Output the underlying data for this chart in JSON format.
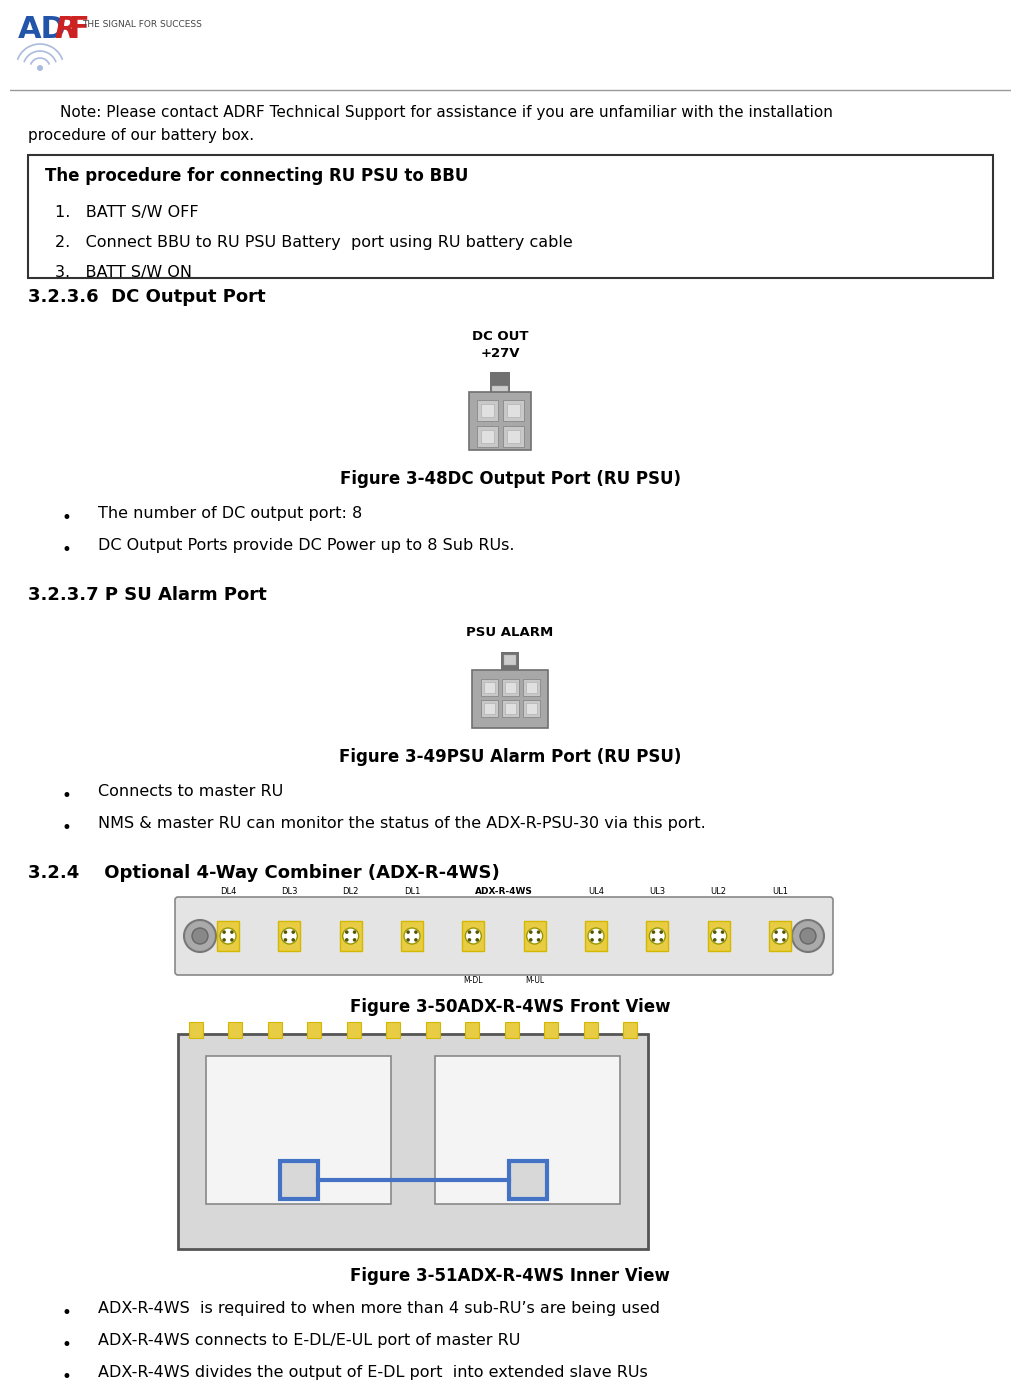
{
  "bg_color": "#ffffff",
  "logo_adrf_blue": "#2255aa",
  "logo_adrf_red": "#cc2222",
  "logo_subtitle": "THE SIGNAL FOR SUCCESS",
  "note_text_line1": "Note: Please contact ADRF Technical Support for assistance if you are unfamiliar with the installation",
  "note_text_line2": "procedure of our battery box.",
  "box_title": "The procedure for connecting RU PSU to BBU",
  "box_item1": "1.   BATT S/W OFF",
  "box_item2": "2.   Connect BBU to RU PSU Battery  port using RU battery cable",
  "box_item3": "3.   BATT S/W ON",
  "section1_heading": "3.2.3.6  DC Output Port",
  "dc_label1": "DC OUT",
  "dc_label2": "+27V",
  "fig48_caption": "Figure 3-48DC Output Port (RU PSU)",
  "bullet1a": "The number of DC output port: 8",
  "bullet1b": "DC Output Ports provide DC Power up to 8 Sub RUs.",
  "section2_heading": "3.2.3.7 P SU Alarm Port",
  "psu_alarm_label": "PSU ALARM",
  "fig49_caption": "Figure 3-49PSU Alarm Port (RU PSU)",
  "bullet2a": "Connects to master RU",
  "bullet2b": "NMS & master RU can monitor the status of the ADX-R-PSU-30 via this port.",
  "section3_heading": "3.2.4    Optional 4-Way Combiner (ADX-R-4WS)",
  "fig50_caption": "Figure 3-50ADX-R-4WS Front View",
  "fig51_caption": "Figure 3-51ADX-R-4WS Inner View",
  "bullet3a": "ADX-R-4WS  is required to when more than 4 sub-RU’s are being used",
  "bullet3b": "ADX-R-4WS connects to E-DL/E-UL port of master RU",
  "bullet3c": "ADX-R-4WS divides the output of E-DL port  into extended slave RUs",
  "gray_dark": "#707070",
  "gray_mid": "#909090",
  "gray_light": "#b0b0b0",
  "gray_body": "#a8a8a8",
  "gray_pin_bg": "#c8c8c8",
  "gray_pin_inner": "#e0e0e0",
  "yellow_color": "#d4b800",
  "yellow_fill": "#e8cc44",
  "blue_color": "#4472c4",
  "border_color": "#333333",
  "box_bg": "#ffffff",
  "inner_bg": "#d8d8d8"
}
